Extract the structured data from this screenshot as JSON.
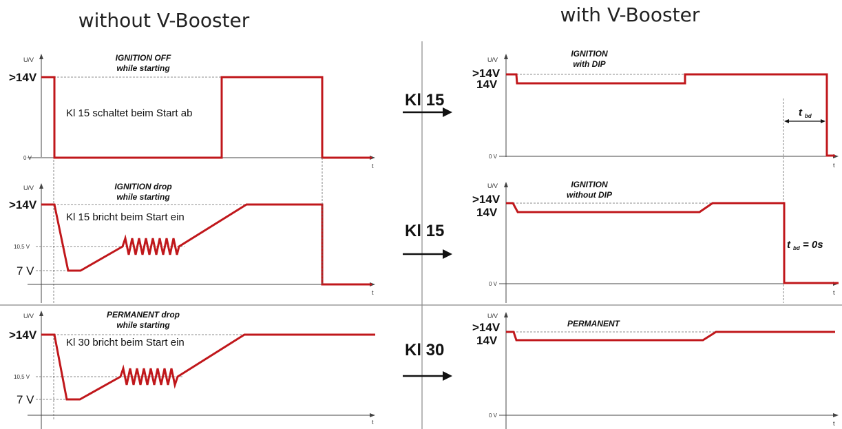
{
  "headings": {
    "left": "without V-Booster",
    "right": "with V-Booster"
  },
  "axis": {
    "y_unit": "U/V",
    "x_unit": "t",
    "zero": "0 V"
  },
  "levels": {
    "over14": ">14V",
    "v14": "14V",
    "v10_5": "10,5 V",
    "v7": "7 V"
  },
  "left_panels": [
    {
      "title_line1": "IGNITION OFF",
      "title_line2": "while starting",
      "note": "Kl 15 schaltet beim Start ab"
    },
    {
      "title_line1": "IGNITION drop",
      "title_line2": "while starting",
      "note": "Kl 15 bricht beim Start ein"
    },
    {
      "title_line1": "PERMANENT drop",
      "title_line2": "while starting",
      "note": "Kl 30 bricht beim Start ein"
    }
  ],
  "right_panels": [
    {
      "title_line1": "IGNITION",
      "title_line2": "with DIP"
    },
    {
      "title_line1": "IGNITION",
      "title_line2": "without DIP"
    },
    {
      "title_line1": "PERMANENT",
      "title_line2": ""
    }
  ],
  "terminals": [
    "Kl 15",
    "Kl 15",
    "Kl 30"
  ],
  "tbd": {
    "symbol": "t",
    "subscript": "bd",
    "zero_value": "= 0s"
  },
  "colors": {
    "signal": "#c0171b",
    "axis": "#444444",
    "dashed": "#666666"
  }
}
